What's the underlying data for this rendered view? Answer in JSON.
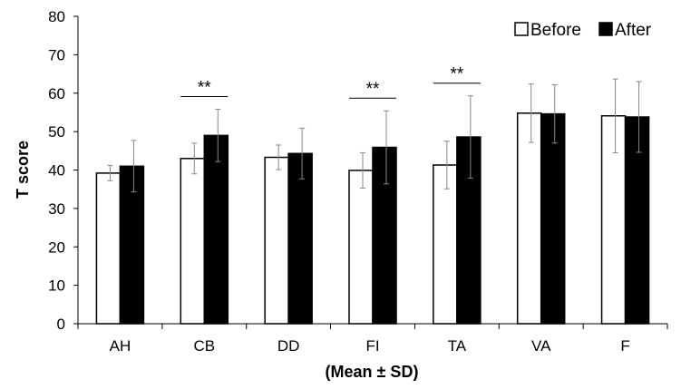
{
  "chart_data": {
    "type": "bar",
    "title": "",
    "xlabel": "(Mean ± SD)",
    "ylabel": "T score",
    "ylim": [
      0,
      80
    ],
    "yticks": [
      "0",
      "10",
      "20",
      "30",
      "40",
      "50",
      "60",
      "70",
      "80"
    ],
    "categories": [
      "AH",
      "CB",
      "DD",
      "FI",
      "TA",
      "VA",
      "F"
    ],
    "series": [
      {
        "name": "Before",
        "color": "#ffffff",
        "values": [
          39.2,
          43.0,
          43.3,
          39.9,
          41.3,
          54.8,
          54.1
        ],
        "sd": [
          2.0,
          4.0,
          3.2,
          4.6,
          6.2,
          7.6,
          9.6
        ]
      },
      {
        "name": "After",
        "color": "#000000",
        "values": [
          41.0,
          49.0,
          44.3,
          45.9,
          48.6,
          54.6,
          53.8
        ],
        "sd": [
          6.7,
          6.8,
          6.6,
          9.5,
          10.7,
          7.6,
          9.2
        ]
      }
    ],
    "significance": [
      {
        "category": "CB",
        "label": "**"
      },
      {
        "category": "FI",
        "label": "**"
      },
      {
        "category": "TA",
        "label": "**"
      }
    ],
    "legend_position": "top-right",
    "grid": false
  }
}
